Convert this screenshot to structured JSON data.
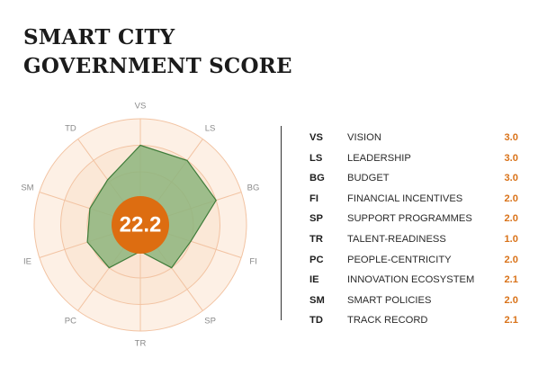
{
  "title": {
    "line1": "SMART CITY",
    "line2": "GOVERNMENT SCORE"
  },
  "colors": {
    "ring_fill": "#fbe3d0",
    "ring_stroke": "#f2c3a2",
    "polygon_fill": "#8db57e",
    "polygon_stroke": "#3f7c3a",
    "center_circle": "#dd6d11",
    "value_text": "#d9731a"
  },
  "chart_data": {
    "type": "radar",
    "range": [
      0,
      4
    ],
    "rings": 4,
    "total_score": "22.2",
    "axes": [
      {
        "code": "VS",
        "name": "VISION",
        "value": 3.0,
        "display": "3.0"
      },
      {
        "code": "LS",
        "name": "LEADERSHIP",
        "value": 3.0,
        "display": "3.0"
      },
      {
        "code": "BG",
        "name": "BUDGET",
        "value": 3.0,
        "display": "3.0"
      },
      {
        "code": "FI",
        "name": "FINANCIAL INCENTIVES",
        "value": 2.0,
        "display": "2.0"
      },
      {
        "code": "SP",
        "name": "SUPPORT PROGRAMMES",
        "value": 2.0,
        "display": "2.0"
      },
      {
        "code": "TR",
        "name": "TALENT-READINESS",
        "value": 1.0,
        "display": "1.0"
      },
      {
        "code": "PC",
        "name": "PEOPLE-CENTRICITY",
        "value": 2.0,
        "display": "2.0"
      },
      {
        "code": "IE",
        "name": "INNOVATION ECOSYSTEM",
        "value": 2.1,
        "display": "2.1"
      },
      {
        "code": "SM",
        "name": "SMART POLICIES",
        "value": 2.0,
        "display": "2.0"
      },
      {
        "code": "TD",
        "name": "TRACK RECORD",
        "value": 2.1,
        "display": "2.1"
      }
    ]
  }
}
